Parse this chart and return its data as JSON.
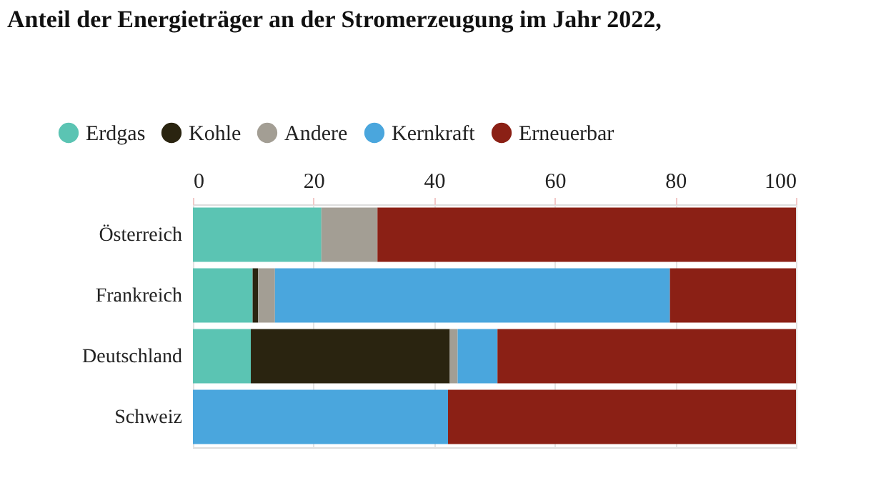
{
  "chart_data": {
    "type": "bar",
    "orientation": "horizontal",
    "stacked": true,
    "title": "Anteil der Energieträger an der Stromerzeugung im Jahr 2022,",
    "categories": [
      "Österreich",
      "Frankreich",
      "Deutschland",
      "Schweiz"
    ],
    "series": [
      {
        "name": "Erdgas",
        "color": "#5bc4b3",
        "values": [
          21.3,
          9.9,
          9.6,
          0
        ]
      },
      {
        "name": "Kohle",
        "color": "#2a2410",
        "values": [
          0,
          0.9,
          33.0,
          0
        ]
      },
      {
        "name": "Andere",
        "color": "#a39e94",
        "values": [
          9.3,
          2.8,
          1.3,
          0
        ]
      },
      {
        "name": "Kernkraft",
        "color": "#4aa6dd",
        "values": [
          0,
          65.5,
          6.6,
          42.3
        ]
      },
      {
        "name": "Erneuerbar",
        "color": "#8b2015",
        "values": [
          69.4,
          20.9,
          49.5,
          57.7
        ]
      }
    ],
    "xlim": [
      0,
      100
    ],
    "xticks": [
      0,
      20,
      40,
      60,
      80,
      100
    ],
    "grid": "x",
    "legend": "top left"
  }
}
